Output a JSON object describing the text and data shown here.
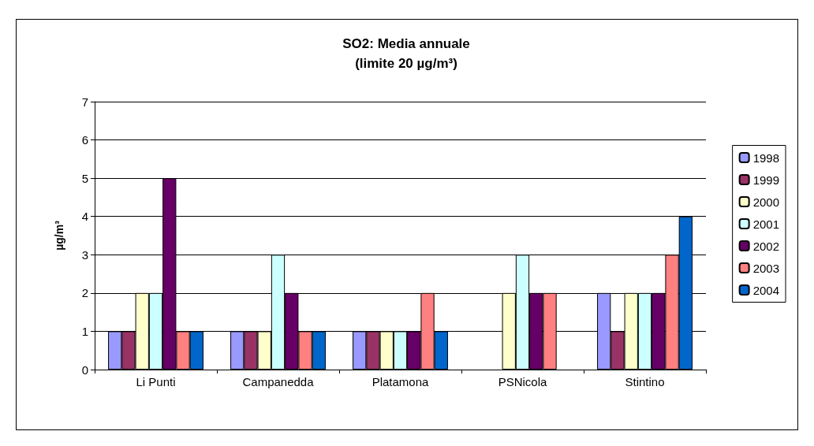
{
  "chart_data": {
    "type": "bar",
    "title": "SO2: Media annuale",
    "subtitle": "(limite 20 µg/m³)",
    "ylabel": "µg/m³",
    "categories": [
      "Li Punti",
      "Campanedda",
      "Platamona",
      "PSNicola",
      "Stintino"
    ],
    "series": [
      {
        "name": "1998",
        "color": "#9999ff",
        "values": [
          1,
          1,
          1,
          null,
          2
        ]
      },
      {
        "name": "1999",
        "color": "#993366",
        "values": [
          1,
          1,
          1,
          null,
          1
        ]
      },
      {
        "name": "2000",
        "color": "#ffffcc",
        "values": [
          2,
          1,
          1,
          2,
          2
        ]
      },
      {
        "name": "2001",
        "color": "#ccffff",
        "values": [
          2,
          3,
          1,
          3,
          2
        ]
      },
      {
        "name": "2002",
        "color": "#660066",
        "values": [
          5,
          2,
          1,
          2,
          2
        ]
      },
      {
        "name": "2003",
        "color": "#ff8080",
        "values": [
          1,
          1,
          2,
          2,
          3
        ]
      },
      {
        "name": "2004",
        "color": "#0066cc",
        "values": [
          1,
          1,
          1,
          null,
          4
        ]
      }
    ],
    "ylim": [
      0,
      7
    ],
    "yticks": [
      0,
      1,
      2,
      3,
      4,
      5,
      6,
      7
    ],
    "grid": "y",
    "legend": "right"
  }
}
